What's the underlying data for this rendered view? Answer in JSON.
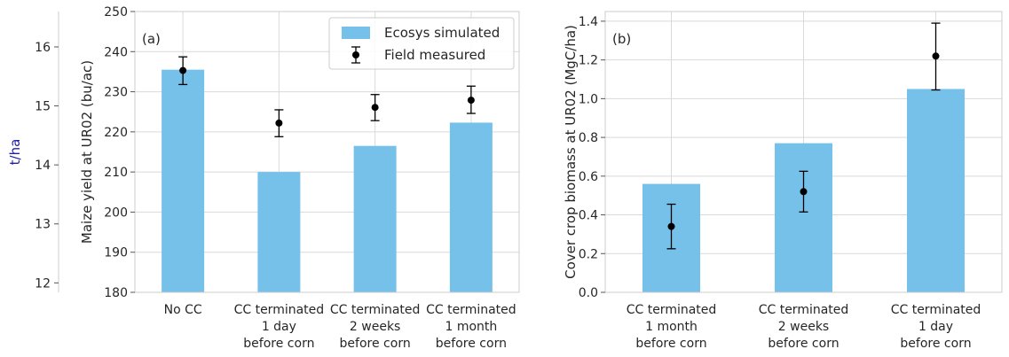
{
  "chart_data": [
    {
      "type": "bar",
      "panel_label": "(a)",
      "categories": [
        [
          "No CC"
        ],
        [
          "CC terminated",
          "1 day",
          "before corn"
        ],
        [
          "CC terminated",
          "2 weeks",
          "before corn"
        ],
        [
          "CC terminated",
          "1 month",
          "before corn"
        ]
      ],
      "series": [
        {
          "name": "Ecosys simulated",
          "kind": "bar",
          "color": "#76c1ea",
          "values": [
            235.5,
            210.0,
            216.5,
            222.3
          ]
        },
        {
          "name": "Field measured",
          "kind": "errorbar",
          "color": "#000000",
          "values": [
            235.3,
            222.2,
            226.1,
            227.9
          ],
          "err_low": [
            3.5,
            3.4,
            3.3,
            3.3
          ],
          "err_high": [
            3.4,
            3.3,
            3.2,
            3.5
          ]
        }
      ],
      "ylabel": "Maize yield at UR02 (bu/ac)",
      "ylim": [
        180,
        250
      ],
      "yticks": [
        180,
        190,
        200,
        210,
        220,
        230,
        240,
        250
      ],
      "secondary_axis": {
        "label": "t/ha",
        "ylim": [
          11.84,
          16.6
        ],
        "ticks": [
          12,
          13,
          14,
          15,
          16
        ],
        "position": "left"
      },
      "legend": {
        "position": "top-right",
        "entries": [
          "Ecosys simulated",
          "Field measured"
        ]
      },
      "grid": true
    },
    {
      "type": "bar",
      "panel_label": "(b)",
      "categories": [
        [
          "CC terminated",
          "1 month",
          "before corn"
        ],
        [
          "CC terminated",
          "2 weeks",
          "before corn"
        ],
        [
          "CC terminated",
          "1 day",
          "before corn"
        ]
      ],
      "series": [
        {
          "name": "Ecosys simulated",
          "kind": "bar",
          "color": "#76c1ea",
          "values": [
            0.56,
            0.77,
            1.05
          ]
        },
        {
          "name": "Field measured",
          "kind": "errorbar",
          "color": "#000000",
          "values": [
            0.34,
            0.52,
            1.22
          ],
          "err_low": [
            0.115,
            0.105,
            0.175
          ],
          "err_high": [
            0.115,
            0.105,
            0.17
          ]
        }
      ],
      "ylabel": "Cover crop biomass at UR02 (MgC/ha)",
      "ylim": [
        0.0,
        1.45
      ],
      "yticks": [
        0.0,
        0.2,
        0.4,
        0.6,
        0.8,
        1.0,
        1.2,
        1.4
      ],
      "ytick_labels": [
        "0.0",
        "0.2",
        "0.4",
        "0.6",
        "0.8",
        "1.0",
        "1.2",
        "1.4"
      ],
      "grid": true
    }
  ]
}
